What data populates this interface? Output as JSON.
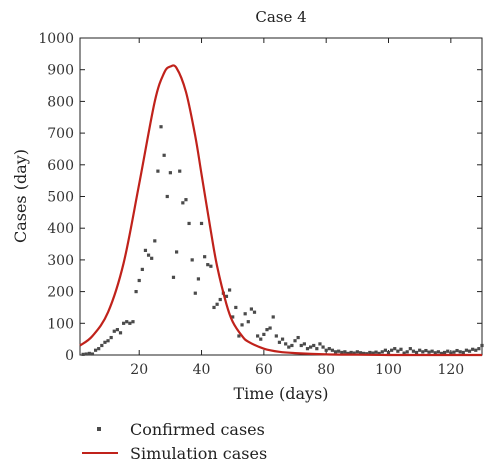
{
  "chart_data": {
    "type": "scatter",
    "title": "Case 4",
    "xlabel": "Time (days)",
    "ylabel": "Cases (day)",
    "xlim": [
      1,
      130
    ],
    "ylim": [
      0,
      1000
    ],
    "xticks": [
      20,
      40,
      60,
      80,
      100,
      120
    ],
    "yticks": [
      0,
      100,
      200,
      300,
      400,
      500,
      600,
      700,
      800,
      900,
      1000
    ],
    "grid": false,
    "legend_position": "bottom",
    "colors": {
      "confirmed": "#4a4a4a",
      "simulation": "#c0221b"
    },
    "series": [
      {
        "name": "Confirmed cases",
        "kind": "scatter",
        "points": [
          [
            2,
            2
          ],
          [
            3,
            3
          ],
          [
            4,
            5
          ],
          [
            5,
            3
          ],
          [
            6,
            15
          ],
          [
            7,
            20
          ],
          [
            8,
            30
          ],
          [
            9,
            40
          ],
          [
            10,
            45
          ],
          [
            11,
            55
          ],
          [
            12,
            75
          ],
          [
            13,
            80
          ],
          [
            14,
            70
          ],
          [
            15,
            100
          ],
          [
            16,
            105
          ],
          [
            17,
            100
          ],
          [
            18,
            105
          ],
          [
            19,
            200
          ],
          [
            20,
            235
          ],
          [
            21,
            270
          ],
          [
            22,
            330
          ],
          [
            23,
            315
          ],
          [
            24,
            305
          ],
          [
            25,
            360
          ],
          [
            26,
            580
          ],
          [
            27,
            720
          ],
          [
            28,
            630
          ],
          [
            29,
            500
          ],
          [
            30,
            575
          ],
          [
            31,
            245
          ],
          [
            32,
            325
          ],
          [
            33,
            580
          ],
          [
            34,
            480
          ],
          [
            35,
            490
          ],
          [
            36,
            415
          ],
          [
            37,
            300
          ],
          [
            38,
            195
          ],
          [
            39,
            240
          ],
          [
            40,
            415
          ],
          [
            41,
            310
          ],
          [
            42,
            285
          ],
          [
            43,
            280
          ],
          [
            44,
            150
          ],
          [
            45,
            160
          ],
          [
            46,
            175
          ],
          [
            47,
            195
          ],
          [
            48,
            185
          ],
          [
            49,
            205
          ],
          [
            50,
            120
          ],
          [
            51,
            150
          ],
          [
            52,
            60
          ],
          [
            53,
            95
          ],
          [
            54,
            130
          ],
          [
            55,
            105
          ],
          [
            56,
            145
          ],
          [
            57,
            135
          ],
          [
            58,
            60
          ],
          [
            59,
            50
          ],
          [
            60,
            65
          ],
          [
            61,
            80
          ],
          [
            62,
            85
          ],
          [
            63,
            120
          ],
          [
            64,
            60
          ],
          [
            65,
            40
          ],
          [
            66,
            50
          ],
          [
            67,
            35
          ],
          [
            68,
            25
          ],
          [
            69,
            30
          ],
          [
            70,
            45
          ],
          [
            71,
            55
          ],
          [
            72,
            30
          ],
          [
            73,
            35
          ],
          [
            74,
            20
          ],
          [
            75,
            25
          ],
          [
            76,
            30
          ],
          [
            77,
            20
          ],
          [
            78,
            35
          ],
          [
            79,
            25
          ],
          [
            80,
            15
          ],
          [
            81,
            20
          ],
          [
            82,
            15
          ],
          [
            83,
            10
          ],
          [
            84,
            12
          ],
          [
            85,
            8
          ],
          [
            86,
            10
          ],
          [
            87,
            5
          ],
          [
            88,
            8
          ],
          [
            89,
            6
          ],
          [
            90,
            10
          ],
          [
            91,
            7
          ],
          [
            92,
            5
          ],
          [
            93,
            4
          ],
          [
            94,
            8
          ],
          [
            95,
            6
          ],
          [
            96,
            9
          ],
          [
            97,
            5
          ],
          [
            98,
            10
          ],
          [
            99,
            15
          ],
          [
            100,
            8
          ],
          [
            101,
            15
          ],
          [
            102,
            20
          ],
          [
            103,
            12
          ],
          [
            104,
            18
          ],
          [
            105,
            6
          ],
          [
            106,
            10
          ],
          [
            107,
            20
          ],
          [
            108,
            12
          ],
          [
            109,
            8
          ],
          [
            110,
            15
          ],
          [
            111,
            10
          ],
          [
            112,
            14
          ],
          [
            113,
            9
          ],
          [
            114,
            12
          ],
          [
            115,
            7
          ],
          [
            116,
            10
          ],
          [
            117,
            5
          ],
          [
            118,
            8
          ],
          [
            119,
            12
          ],
          [
            120,
            6
          ],
          [
            121,
            9
          ],
          [
            122,
            14
          ],
          [
            123,
            10
          ],
          [
            124,
            8
          ],
          [
            125,
            15
          ],
          [
            126,
            12
          ],
          [
            127,
            18
          ],
          [
            128,
            15
          ],
          [
            129,
            20
          ],
          [
            130,
            30
          ]
        ]
      },
      {
        "name": "Simulation cases",
        "kind": "line",
        "points": [
          [
            1,
            30
          ],
          [
            5,
            60
          ],
          [
            10,
            135
          ],
          [
            15,
            290
          ],
          [
            20,
            540
          ],
          [
            25,
            800
          ],
          [
            28,
            890
          ],
          [
            30,
            910
          ],
          [
            32,
            905
          ],
          [
            35,
            830
          ],
          [
            38,
            690
          ],
          [
            40,
            570
          ],
          [
            43,
            390
          ],
          [
            45,
            280
          ],
          [
            48,
            160
          ],
          [
            50,
            105
          ],
          [
            53,
            60
          ],
          [
            55,
            42
          ],
          [
            60,
            20
          ],
          [
            65,
            10
          ],
          [
            70,
            6
          ],
          [
            80,
            2
          ],
          [
            90,
            1
          ],
          [
            100,
            0
          ],
          [
            110,
            0
          ],
          [
            120,
            0
          ],
          [
            130,
            0
          ]
        ]
      }
    ]
  }
}
